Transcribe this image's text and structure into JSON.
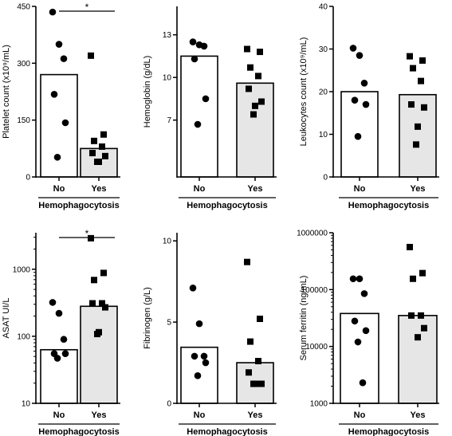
{
  "chart_data": [
    {
      "type": "bar",
      "ylabel": "Platelet count (x10⁹/mL)",
      "xlabel": "Hemophagocytosis",
      "scale": "linear",
      "ylim": [
        0,
        450
      ],
      "yticks": [
        0,
        150,
        300,
        450
      ],
      "ytick_labels": [
        "0",
        "150",
        "300",
        "450"
      ],
      "categories": [
        "No",
        "Yes"
      ],
      "bar_values": [
        270,
        75
      ],
      "points": {
        "No": [
          435,
          350,
          312,
          218,
          143,
          52
        ],
        "Yes": [
          320,
          112,
          95,
          80,
          63,
          55,
          40,
          40
        ]
      },
      "markers": [
        "circle",
        "square"
      ],
      "significance": "*"
    },
    {
      "type": "bar",
      "ylabel": "Hemoglobin (g/dL)",
      "xlabel": "Hemophagocytosis",
      "scale": "linear",
      "ylim": [
        3,
        15
      ],
      "yticks": [
        7,
        10,
        13
      ],
      "ytick_labels": [
        "7",
        "10",
        "13"
      ],
      "categories": [
        "No",
        "Yes"
      ],
      "bar_values": [
        11.5,
        9.6
      ],
      "points": {
        "No": [
          12.5,
          12.3,
          12.2,
          11.3,
          8.5,
          6.7
        ],
        "Yes": [
          12.0,
          11.8,
          10.7,
          10.1,
          9.2,
          8.3,
          8.0,
          7.4
        ]
      },
      "markers": [
        "circle",
        "square"
      ],
      "significance": ""
    },
    {
      "type": "bar",
      "ylabel": "Leukocytes count (x10⁹/mL)",
      "xlabel": "Hemophagocytosis",
      "scale": "linear",
      "ylim": [
        0,
        40
      ],
      "yticks": [
        0,
        10,
        20,
        30,
        40
      ],
      "ytick_labels": [
        "0",
        "10",
        "20",
        "30",
        "40"
      ],
      "categories": [
        "No",
        "Yes"
      ],
      "bar_values": [
        20,
        19.3
      ],
      "points": {
        "No": [
          30.2,
          28.5,
          22,
          18,
          17,
          9.5
        ],
        "Yes": [
          28.3,
          27.3,
          25.5,
          22.5,
          17,
          16.3,
          11.8,
          7.6
        ]
      },
      "markers": [
        "circle",
        "square"
      ],
      "significance": ""
    },
    {
      "type": "bar",
      "ylabel": "ASAT UI/L",
      "xlabel": "Hemophagocytosis",
      "scale": "log",
      "ylim": [
        10,
        3500
      ],
      "yticks": [
        10,
        100,
        1000
      ],
      "ytick_labels": [
        "10",
        "100",
        "1000"
      ],
      "categories": [
        "No",
        "Yes"
      ],
      "bar_values": [
        63,
        280
      ],
      "points": {
        "No": [
          320,
          220,
          90,
          55,
          55,
          47
        ],
        "Yes": [
          2900,
          880,
          690,
          310,
          310,
          270,
          115,
          108
        ]
      },
      "markers": [
        "circle",
        "square"
      ],
      "significance": "*"
    },
    {
      "type": "bar",
      "ylabel": "Fibrinogen (g/L)",
      "xlabel": "Hemophagocytosis",
      "scale": "linear",
      "ylim": [
        0,
        10.5
      ],
      "yticks": [
        0,
        5,
        10
      ],
      "ytick_labels": [
        "0",
        "5",
        "10"
      ],
      "categories": [
        "No",
        "Yes"
      ],
      "bar_values": [
        3.45,
        2.5
      ],
      "points": {
        "No": [
          7.1,
          4.9,
          2.9,
          2.9,
          2.5,
          1.7
        ],
        "Yes": [
          8.7,
          5.2,
          3.8,
          2.6,
          1.9,
          1.2,
          1.2,
          1.2
        ]
      },
      "markers": [
        "circle",
        "square"
      ],
      "significance": ""
    },
    {
      "type": "bar",
      "ylabel": "Serum ferritin (ng/mL)",
      "xlabel": "Hemophagocytosis",
      "scale": "log",
      "ylim": [
        1000,
        1000000
      ],
      "yticks": [
        1000,
        10000,
        100000,
        1000000
      ],
      "ytick_labels": [
        "1000",
        "10000",
        "100000",
        "1000000"
      ],
      "categories": [
        "No",
        "Yes"
      ],
      "bar_values": [
        38000,
        35000
      ],
      "points": {
        "No": [
          155000,
          155000,
          85000,
          28000,
          19000,
          12000,
          2300
        ],
        "Yes": [
          560000,
          195000,
          155000,
          35000,
          35000,
          21000,
          14500
        ]
      },
      "markers": [
        "circle",
        "square"
      ],
      "significance": ""
    }
  ],
  "colors": {
    "bar_no": "#ffffff",
    "bar_yes": "#e6e6e6",
    "stroke": "#000000",
    "marker": "#000000"
  }
}
